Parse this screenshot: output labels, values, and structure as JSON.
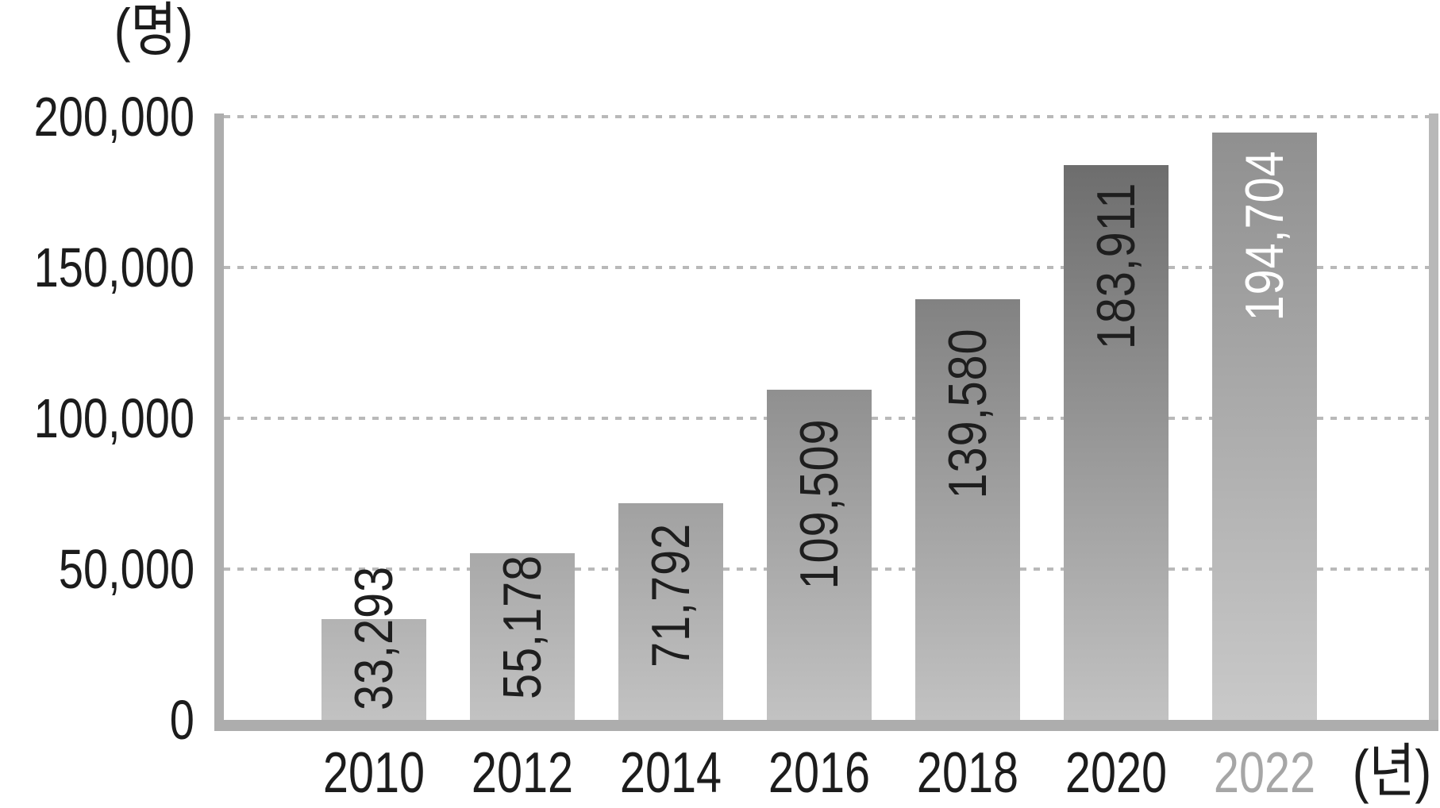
{
  "chart_data": {
    "type": "bar",
    "title": "",
    "y_axis_label": "(명)",
    "x_axis_label": "(년)",
    "categories": [
      "2010",
      "2012",
      "2014",
      "2016",
      "2018",
      "2020",
      "2022"
    ],
    "values": [
      33293,
      55178,
      71792,
      109509,
      139580,
      183911,
      194704
    ],
    "value_labels": [
      "33,293",
      "55,178",
      "71,792",
      "109,509",
      "139,580",
      "183,911",
      "194,704"
    ],
    "y_ticks": [
      {
        "label": "0",
        "value": 0
      },
      {
        "label": "50,000",
        "value": 50000
      },
      {
        "label": "100,000",
        "value": 100000
      },
      {
        "label": "150,000",
        "value": 150000
      },
      {
        "label": "200,000",
        "value": 200000
      }
    ],
    "ylim": [
      0,
      200000
    ],
    "grid": "dotted-horizontal",
    "legend": "none",
    "highlight_index": 6,
    "colors": {
      "bar_gradient_top": "#666666",
      "bar_gradient_bottom": "#c2c2c2",
      "highlight_bar_gradient_top": "#8e8e8e",
      "highlight_bar_gradient_bottom": "#c9c9c9",
      "value_label": "#1e1e1e",
      "highlight_value_label": "#ffffff",
      "tick_label": "#1c1c1c",
      "highlight_tick_label": "#a6a6a6",
      "axis_line": "#adadad",
      "gridline": "#b9b9b9"
    }
  }
}
